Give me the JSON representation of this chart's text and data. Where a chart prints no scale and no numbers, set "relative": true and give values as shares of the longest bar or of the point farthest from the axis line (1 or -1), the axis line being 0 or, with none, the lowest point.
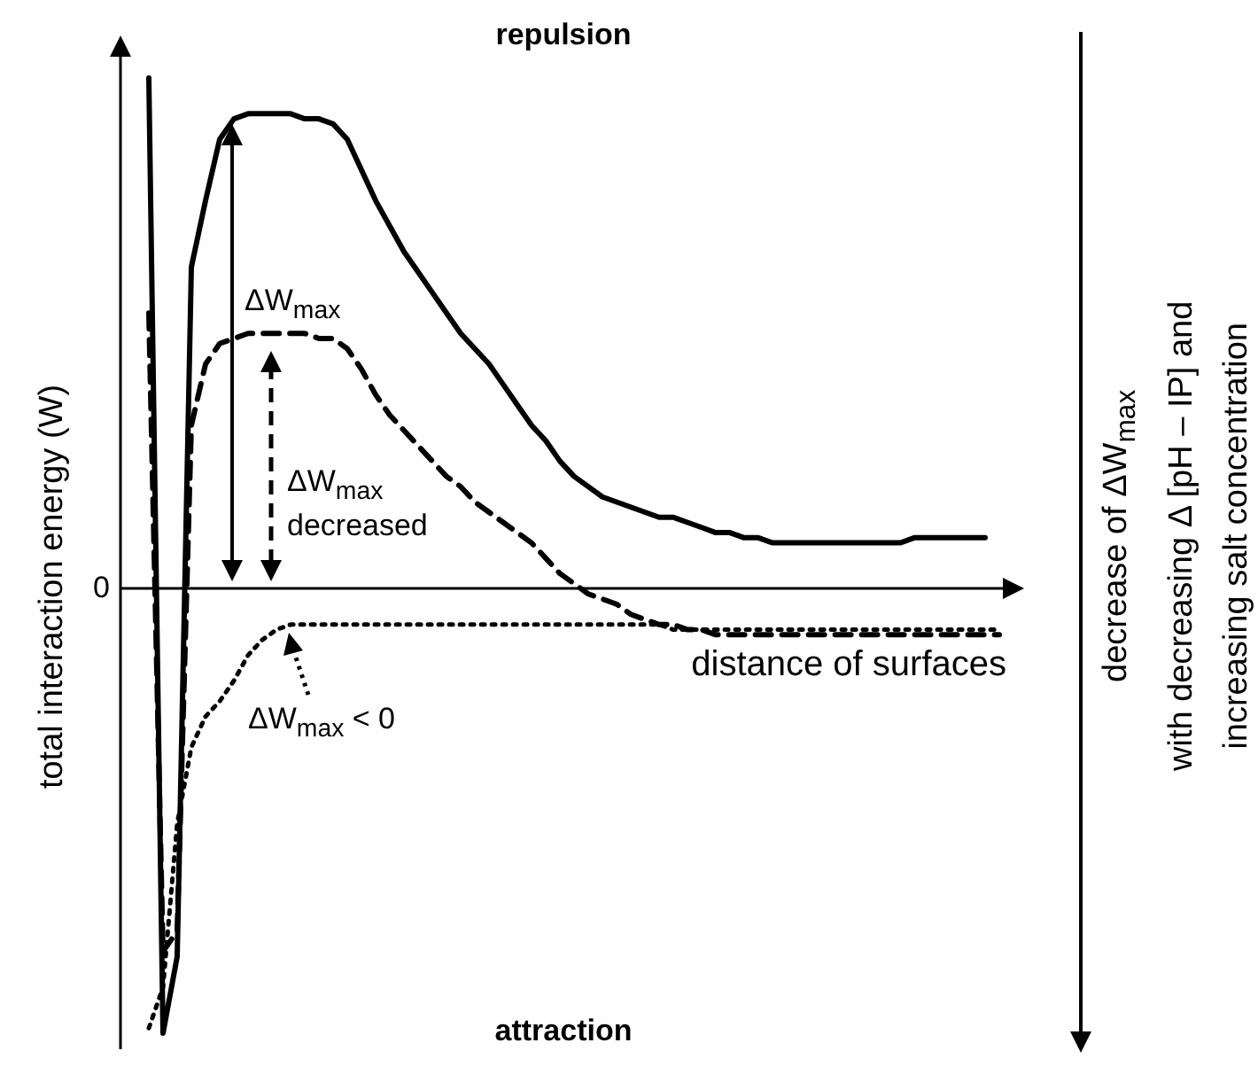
{
  "chart_data": {
    "type": "line",
    "relative": true,
    "ylabel": "total interaction energy (W)",
    "xlabel": "distance of surfaces",
    "marker": "none",
    "grid": false,
    "annotations": [
      "repulsion",
      "attraction",
      "ΔW$_{max}$",
      "ΔW$_{max}$ decreased",
      "ΔW$_{max}$ < 0",
      "0",
      "decrease of ΔW$_{max}$\nwith decreasing  Δ [pH – IP] and\nincreasing salt concentration"
    ],
    "categories": [
      null,
      null,
      null,
      null,
      null,
      null,
      null,
      null,
      null,
      null,
      null,
      null,
      null,
      null,
      null,
      null,
      null,
      null,
      null,
      null,
      null,
      null,
      null,
      null,
      null,
      null,
      null,
      null,
      null,
      null,
      null,
      null,
      null,
      null,
      null,
      null,
      null,
      null,
      null,
      null,
      null,
      null,
      null,
      null,
      null,
      null,
      null,
      null,
      null,
      null,
      null,
      null,
      null,
      null,
      null,
      null,
      null,
      null,
      null,
      null,
      null
    ],
    "series": [
      {
        "color": "#000000",
        "line_style": "solid",
        "values": [
          1.0,
          -0.87,
          -0.72,
          0.63,
          0.76,
          0.88,
          0.92,
          0.93,
          0.93,
          0.93,
          0.93,
          0.92,
          0.92,
          0.91,
          0.88,
          0.82,
          0.76,
          0.71,
          0.66,
          0.62,
          0.58,
          0.54,
          0.5,
          0.47,
          0.44,
          0.4,
          0.36,
          0.32,
          0.29,
          0.25,
          0.22,
          0.2,
          0.18,
          0.17,
          0.16,
          0.15,
          0.14,
          0.14,
          0.13,
          0.12,
          0.11,
          0.11,
          0.1,
          0.1,
          0.09,
          0.09,
          0.09,
          0.09,
          0.09,
          0.09,
          0.09,
          0.09,
          0.09,
          0.09,
          0.1,
          0.1,
          0.1,
          0.1,
          0.1,
          0.1,
          null
        ]
      },
      {
        "color": "#000000",
        "line_style": "dashed",
        "values": [
          0.54,
          -0.71,
          -0.67,
          0.32,
          0.44,
          0.48,
          0.49,
          0.5,
          0.5,
          0.5,
          0.5,
          0.5,
          0.49,
          0.49,
          0.47,
          0.43,
          0.38,
          0.34,
          0.31,
          0.28,
          0.25,
          0.22,
          0.2,
          0.17,
          0.15,
          0.13,
          0.11,
          0.09,
          0.06,
          0.03,
          0.01,
          -0.01,
          -0.02,
          -0.03,
          -0.05,
          -0.06,
          -0.07,
          -0.07,
          -0.08,
          -0.08,
          -0.09,
          -0.09,
          -0.09,
          -0.09,
          -0.09,
          -0.09,
          -0.09,
          -0.09,
          -0.09,
          -0.09,
          -0.09,
          -0.09,
          -0.09,
          -0.09,
          -0.09,
          -0.09,
          -0.09,
          -0.09,
          -0.09,
          -0.09,
          -0.09
        ]
      },
      {
        "color": "#000000",
        "line_style": "dotted",
        "values": [
          -0.86,
          -0.78,
          -0.46,
          -0.31,
          -0.25,
          -0.22,
          -0.18,
          -0.13,
          -0.1,
          -0.08,
          -0.07,
          -0.07,
          -0.07,
          -0.07,
          -0.07,
          -0.07,
          -0.07,
          -0.07,
          -0.07,
          -0.07,
          -0.07,
          -0.07,
          -0.07,
          -0.07,
          -0.07,
          -0.07,
          -0.07,
          -0.07,
          -0.07,
          -0.07,
          -0.07,
          -0.07,
          -0.07,
          -0.07,
          -0.07,
          -0.07,
          -0.07,
          -0.08,
          -0.08,
          -0.08,
          -0.08,
          -0.08,
          -0.08,
          -0.08,
          -0.08,
          -0.08,
          -0.08,
          -0.08,
          -0.08,
          -0.08,
          -0.08,
          -0.08,
          -0.08,
          -0.08,
          -0.08,
          -0.08,
          -0.08,
          -0.08,
          -0.08,
          -0.08,
          -0.08
        ]
      }
    ]
  }
}
